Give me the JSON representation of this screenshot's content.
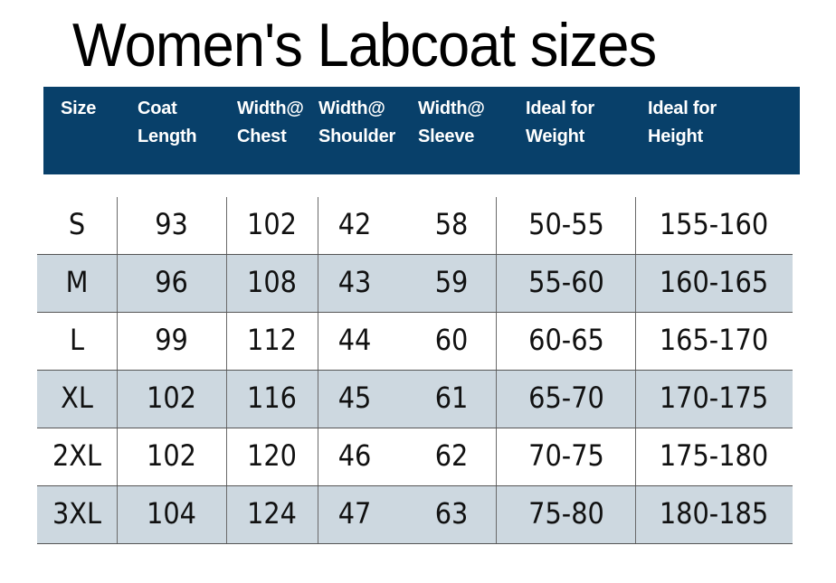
{
  "title": "Women's Labcoat sizes",
  "colors": {
    "header_bg": "#08406a",
    "header_text": "#ffffff",
    "row_shade": "#cdd8e0"
  },
  "table": {
    "headers": [
      "Size",
      "Coat\nLength",
      "Width@\nChest",
      "Width@\nShoulder",
      "Width@\nSleeve",
      "Ideal for\nWeight",
      "Ideal for\nHeight"
    ],
    "rows": [
      [
        "S",
        "93",
        "102",
        "42",
        "58",
        "50-55",
        "155-160"
      ],
      [
        "M",
        "96",
        "108",
        "43",
        "59",
        "55-60",
        "160-165"
      ],
      [
        "L",
        "99",
        "112",
        "44",
        "60",
        "60-65",
        "165-170"
      ],
      [
        "XL",
        "102",
        "116",
        "45",
        "61",
        "65-70",
        "170-175"
      ],
      [
        "2XL",
        "102",
        "120",
        "46",
        "62",
        "70-75",
        "175-180"
      ],
      [
        "3XL",
        "104",
        "124",
        "47",
        "63",
        "75-80",
        "180-185"
      ]
    ]
  }
}
